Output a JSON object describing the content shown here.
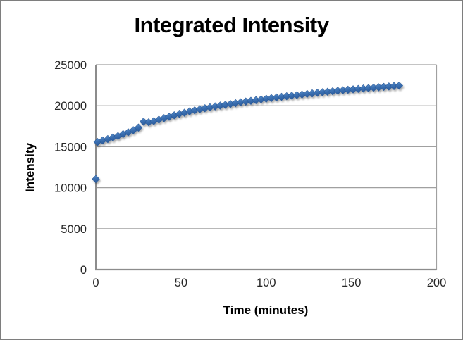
{
  "chart_data": {
    "type": "scatter",
    "title": "Integrated Intensity",
    "xlabel": "Time (minutes)",
    "ylabel": "Intensity",
    "xlim": [
      0,
      200
    ],
    "ylim": [
      0,
      25000
    ],
    "x_ticks": [
      0,
      50,
      100,
      150,
      200
    ],
    "y_ticks": [
      0,
      5000,
      10000,
      15000,
      20000,
      25000
    ],
    "grid": "horizontal",
    "legend": "none",
    "marker_shape": "diamond",
    "colors": {
      "marker_fill_top": "#6B9DD6",
      "marker_fill_mid": "#3F74B5",
      "marker_fill_bottom": "#2C5C9C",
      "marker_border": "#2A5A99",
      "gridline": "#A0A0A0",
      "axis_line": "#8C8C8C",
      "frame_border": "#7E7E7E",
      "tick_text": "#262626",
      "title_text": "#000000"
    },
    "series": [
      {
        "name": "Integrated Intensity",
        "points": [
          [
            0,
            11050
          ],
          [
            1,
            15570
          ],
          [
            4,
            15760
          ],
          [
            7,
            15930
          ],
          [
            10,
            16130
          ],
          [
            13,
            16300
          ],
          [
            16,
            16540
          ],
          [
            19,
            16760
          ],
          [
            22,
            17010
          ],
          [
            25,
            17330
          ],
          [
            28,
            18050
          ],
          [
            31,
            17980
          ],
          [
            34,
            18120
          ],
          [
            37,
            18300
          ],
          [
            40,
            18480
          ],
          [
            43,
            18650
          ],
          [
            46,
            18830
          ],
          [
            49,
            19010
          ],
          [
            52,
            19150
          ],
          [
            55,
            19310
          ],
          [
            58,
            19440
          ],
          [
            61,
            19570
          ],
          [
            64,
            19690
          ],
          [
            67,
            19800
          ],
          [
            70,
            19920
          ],
          [
            73,
            20020
          ],
          [
            76,
            20110
          ],
          [
            79,
            20210
          ],
          [
            82,
            20310
          ],
          [
            85,
            20420
          ],
          [
            88,
            20510
          ],
          [
            91,
            20600
          ],
          [
            94,
            20680
          ],
          [
            97,
            20770
          ],
          [
            100,
            20850
          ],
          [
            103,
            20930
          ],
          [
            106,
            21010
          ],
          [
            109,
            21090
          ],
          [
            112,
            21160
          ],
          [
            115,
            21230
          ],
          [
            118,
            21300
          ],
          [
            121,
            21370
          ],
          [
            124,
            21440
          ],
          [
            127,
            21510
          ],
          [
            130,
            21580
          ],
          [
            133,
            21650
          ],
          [
            136,
            21710
          ],
          [
            139,
            21770
          ],
          [
            142,
            21830
          ],
          [
            145,
            21890
          ],
          [
            148,
            21950
          ],
          [
            151,
            22000
          ],
          [
            154,
            22050
          ],
          [
            157,
            22100
          ],
          [
            160,
            22150
          ],
          [
            163,
            22200
          ],
          [
            166,
            22250
          ],
          [
            169,
            22300
          ],
          [
            172,
            22350
          ],
          [
            175,
            22400
          ],
          [
            178,
            22450
          ]
        ]
      }
    ]
  }
}
